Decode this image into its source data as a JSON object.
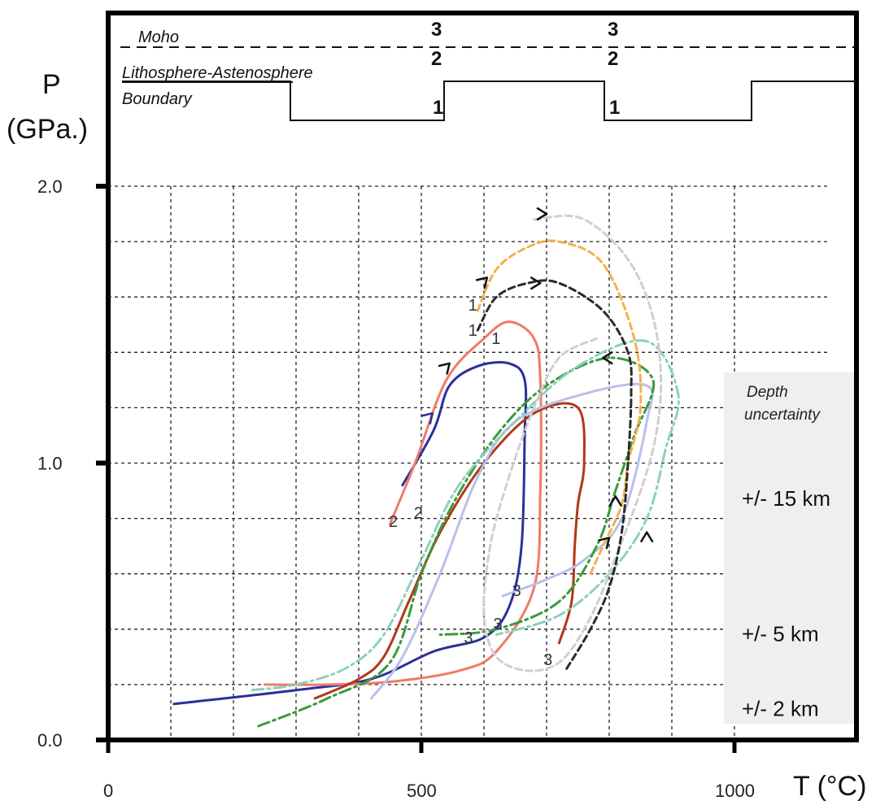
{
  "chart_data": {
    "type": "line",
    "title": "",
    "xlabel": "T (°C)",
    "ylabel_line1": "P",
    "ylabel_line2": "(GPa.)",
    "xlim": [
      0,
      1200
    ],
    "ylim": [
      0,
      2.4
    ],
    "x_tick_labels": [
      {
        "value": 0,
        "label": "0"
      },
      {
        "value": 500,
        "label": "500"
      },
      {
        "value": 1000,
        "label": "1000"
      }
    ],
    "y_tick_labels": [
      {
        "value": 0,
        "label": "0.0"
      },
      {
        "value": 1.0,
        "label": "1.0"
      },
      {
        "value": 2.0,
        "label": "2.0"
      }
    ],
    "grid": true,
    "grid_x": [
      100,
      200,
      300,
      400,
      500,
      600,
      700,
      800,
      900,
      1000
    ],
    "grid_y": [
      0.2,
      0.4,
      0.6,
      0.8,
      1.0,
      1.2,
      1.4,
      1.6,
      1.8,
      2.0
    ],
    "moho_label": "Moho",
    "lab_label_line1": "Lithosphere-Astenosphere",
    "lab_label_line2": "Boundary",
    "lab_step_profile": [
      {
        "x": 0,
        "level": "high"
      },
      {
        "x": 300,
        "level": "low"
      },
      {
        "x": 545,
        "level": "high"
      },
      {
        "x": 800,
        "level": "low"
      },
      {
        "x": 1035,
        "level": "high"
      }
    ],
    "step_markers": [
      {
        "x": 520,
        "top": "3",
        "mid": "2",
        "bottom": "1"
      },
      {
        "x": 815,
        "top": "3",
        "mid": "2",
        "bottom": "1"
      }
    ],
    "depth_title_line1": "Depth",
    "depth_title_line2": "uncertainty",
    "depth_labels": [
      {
        "p": 0.87,
        "label": "+/- 15 km"
      },
      {
        "p": 0.38,
        "label": "+/- 5 km"
      },
      {
        "p": 0.11,
        "label": "+/- 2 km"
      }
    ],
    "series": [
      {
        "color": "#2b2f9c",
        "style": "solid",
        "width": 3,
        "points": [
          [
            105,
            0.13
          ],
          [
            300,
            0.18
          ],
          [
            420,
            0.22
          ],
          [
            520,
            0.32
          ],
          [
            600,
            0.37
          ],
          [
            640,
            0.48
          ],
          [
            660,
            0.7
          ],
          [
            665,
            1.1
          ],
          [
            665,
            1.3
          ],
          [
            640,
            1.36
          ],
          [
            590,
            1.35
          ],
          [
            545,
            1.28
          ],
          [
            520,
            1.12
          ],
          [
            470,
            0.92
          ]
        ]
      },
      {
        "color": "#f07a68",
        "style": "solid",
        "width": 3,
        "points": [
          [
            250,
            0.2
          ],
          [
            350,
            0.2
          ],
          [
            450,
            0.21
          ],
          [
            560,
            0.25
          ],
          [
            620,
            0.32
          ],
          [
            680,
            0.55
          ],
          [
            690,
            0.9
          ],
          [
            690,
            1.3
          ],
          [
            680,
            1.45
          ],
          [
            640,
            1.51
          ],
          [
            600,
            1.45
          ],
          [
            540,
            1.3
          ],
          [
            490,
            1.0
          ],
          [
            450,
            0.78
          ]
        ]
      },
      {
        "color": "#b03818",
        "style": "solid",
        "width": 3,
        "points": [
          [
            330,
            0.15
          ],
          [
            400,
            0.22
          ],
          [
            440,
            0.3
          ],
          [
            480,
            0.5
          ],
          [
            530,
            0.75
          ],
          [
            600,
            1.0
          ],
          [
            680,
            1.18
          ],
          [
            750,
            1.2
          ],
          [
            760,
            1.0
          ],
          [
            750,
            0.85
          ],
          [
            745,
            0.7
          ],
          [
            740,
            0.5
          ],
          [
            720,
            0.35
          ]
        ]
      },
      {
        "color": "#b9c0ea",
        "style": "solid",
        "width": 3,
        "points": [
          [
            420,
            0.15
          ],
          [
            470,
            0.3
          ],
          [
            530,
            0.6
          ],
          [
            590,
            0.95
          ],
          [
            650,
            1.15
          ],
          [
            760,
            1.25
          ],
          [
            860,
            1.28
          ],
          [
            860,
            1.15
          ],
          [
            820,
            0.8
          ],
          [
            760,
            0.65
          ],
          [
            700,
            0.58
          ],
          [
            630,
            0.52
          ]
        ]
      },
      {
        "color": "#3a9a3a",
        "style": "dashdot",
        "width": 3,
        "points": [
          [
            240,
            0.05
          ],
          [
            350,
            0.15
          ],
          [
            450,
            0.28
          ],
          [
            500,
            0.6
          ],
          [
            550,
            0.85
          ],
          [
            620,
            1.1
          ],
          [
            700,
            1.28
          ],
          [
            800,
            1.38
          ],
          [
            870,
            1.3
          ],
          [
            840,
            1.1
          ],
          [
            810,
            0.9
          ],
          [
            780,
            0.7
          ],
          [
            720,
            0.5
          ],
          [
            620,
            0.4
          ],
          [
            530,
            0.38
          ]
        ]
      },
      {
        "color": "#8ed0bf",
        "style": "dashdot",
        "width": 3,
        "points": [
          [
            230,
            0.18
          ],
          [
            300,
            0.2
          ],
          [
            380,
            0.26
          ],
          [
            440,
            0.38
          ],
          [
            500,
            0.65
          ],
          [
            560,
            0.92
          ],
          [
            650,
            1.15
          ],
          [
            750,
            1.35
          ],
          [
            860,
            1.44
          ],
          [
            910,
            1.25
          ],
          [
            890,
            1.05
          ],
          [
            860,
            0.8
          ],
          [
            800,
            0.6
          ],
          [
            720,
            0.45
          ],
          [
            620,
            0.38
          ]
        ]
      },
      {
        "color": "#f4b04a",
        "style": "dashed",
        "width": 3,
        "points": [
          [
            590,
            1.55
          ],
          [
            620,
            1.7
          ],
          [
            670,
            1.78
          ],
          [
            720,
            1.8
          ],
          [
            790,
            1.72
          ],
          [
            840,
            1.45
          ],
          [
            850,
            1.2
          ],
          [
            830,
            1.0
          ],
          [
            820,
            0.85
          ],
          [
            790,
            0.7
          ],
          [
            770,
            0.6
          ]
        ]
      },
      {
        "color": "#cfcfcf",
        "style": "dashed",
        "width": 3,
        "points": [
          [
            680,
            1.88
          ],
          [
            760,
            1.88
          ],
          [
            840,
            1.7
          ],
          [
            880,
            1.4
          ],
          [
            870,
            1.05
          ],
          [
            800,
            0.6
          ],
          [
            760,
            0.4
          ],
          [
            720,
            0.28
          ],
          [
            670,
            0.25
          ],
          [
            620,
            0.3
          ],
          [
            600,
            0.45
          ],
          [
            610,
            0.7
          ],
          [
            640,
            0.95
          ],
          [
            680,
            1.2
          ],
          [
            720,
            1.38
          ],
          [
            780,
            1.45
          ]
        ]
      },
      {
        "color": "#2a2a2a",
        "style": "dashed",
        "width": 3,
        "points": [
          [
            590,
            1.48
          ],
          [
            620,
            1.6
          ],
          [
            670,
            1.65
          ],
          [
            720,
            1.65
          ],
          [
            790,
            1.55
          ],
          [
            830,
            1.4
          ],
          [
            835,
            1.25
          ],
          [
            830,
            1.0
          ],
          [
            820,
            0.75
          ],
          [
            800,
            0.55
          ],
          [
            770,
            0.4
          ],
          [
            730,
            0.25
          ]
        ]
      }
    ],
    "path_numbers": [
      {
        "x": 575,
        "p": 1.55,
        "label": "1"
      },
      {
        "x": 575,
        "p": 1.46,
        "label": "1"
      },
      {
        "x": 612,
        "p": 1.43,
        "label": "1"
      },
      {
        "x": 448,
        "p": 0.77,
        "label": "2"
      },
      {
        "x": 488,
        "p": 0.8,
        "label": "2"
      },
      {
        "x": 645,
        "p": 0.52,
        "label": "3"
      },
      {
        "x": 568,
        "p": 0.35,
        "label": "3"
      },
      {
        "x": 615,
        "p": 0.4,
        "label": "3"
      },
      {
        "x": 695,
        "p": 0.27,
        "label": "3"
      }
    ],
    "arrows": [
      {
        "x": 518,
        "p": 1.18,
        "dx": 1,
        "dp": 1,
        "color": "#2b2f9c"
      },
      {
        "x": 545,
        "p": 1.36,
        "dx": 1,
        "dp": 1,
        "color": "#111"
      },
      {
        "x": 605,
        "p": 1.67,
        "dx": 1,
        "dp": 1,
        "color": "#111"
      },
      {
        "x": 690,
        "p": 1.65,
        "dx": 1,
        "dp": 0,
        "color": "#111"
      },
      {
        "x": 700,
        "p": 1.9,
        "dx": 1,
        "dp": 0,
        "color": "#111"
      },
      {
        "x": 790,
        "p": 1.38,
        "dx": -1,
        "dp": 0,
        "color": "#111"
      },
      {
        "x": 810,
        "p": 0.88,
        "dx": 0,
        "dp": 1,
        "color": "#111"
      },
      {
        "x": 800,
        "p": 0.73,
        "dx": 1,
        "dp": 1,
        "color": "#111"
      },
      {
        "x": 860,
        "p": 0.75,
        "dx": 0,
        "dp": 1,
        "color": "#111"
      }
    ]
  }
}
